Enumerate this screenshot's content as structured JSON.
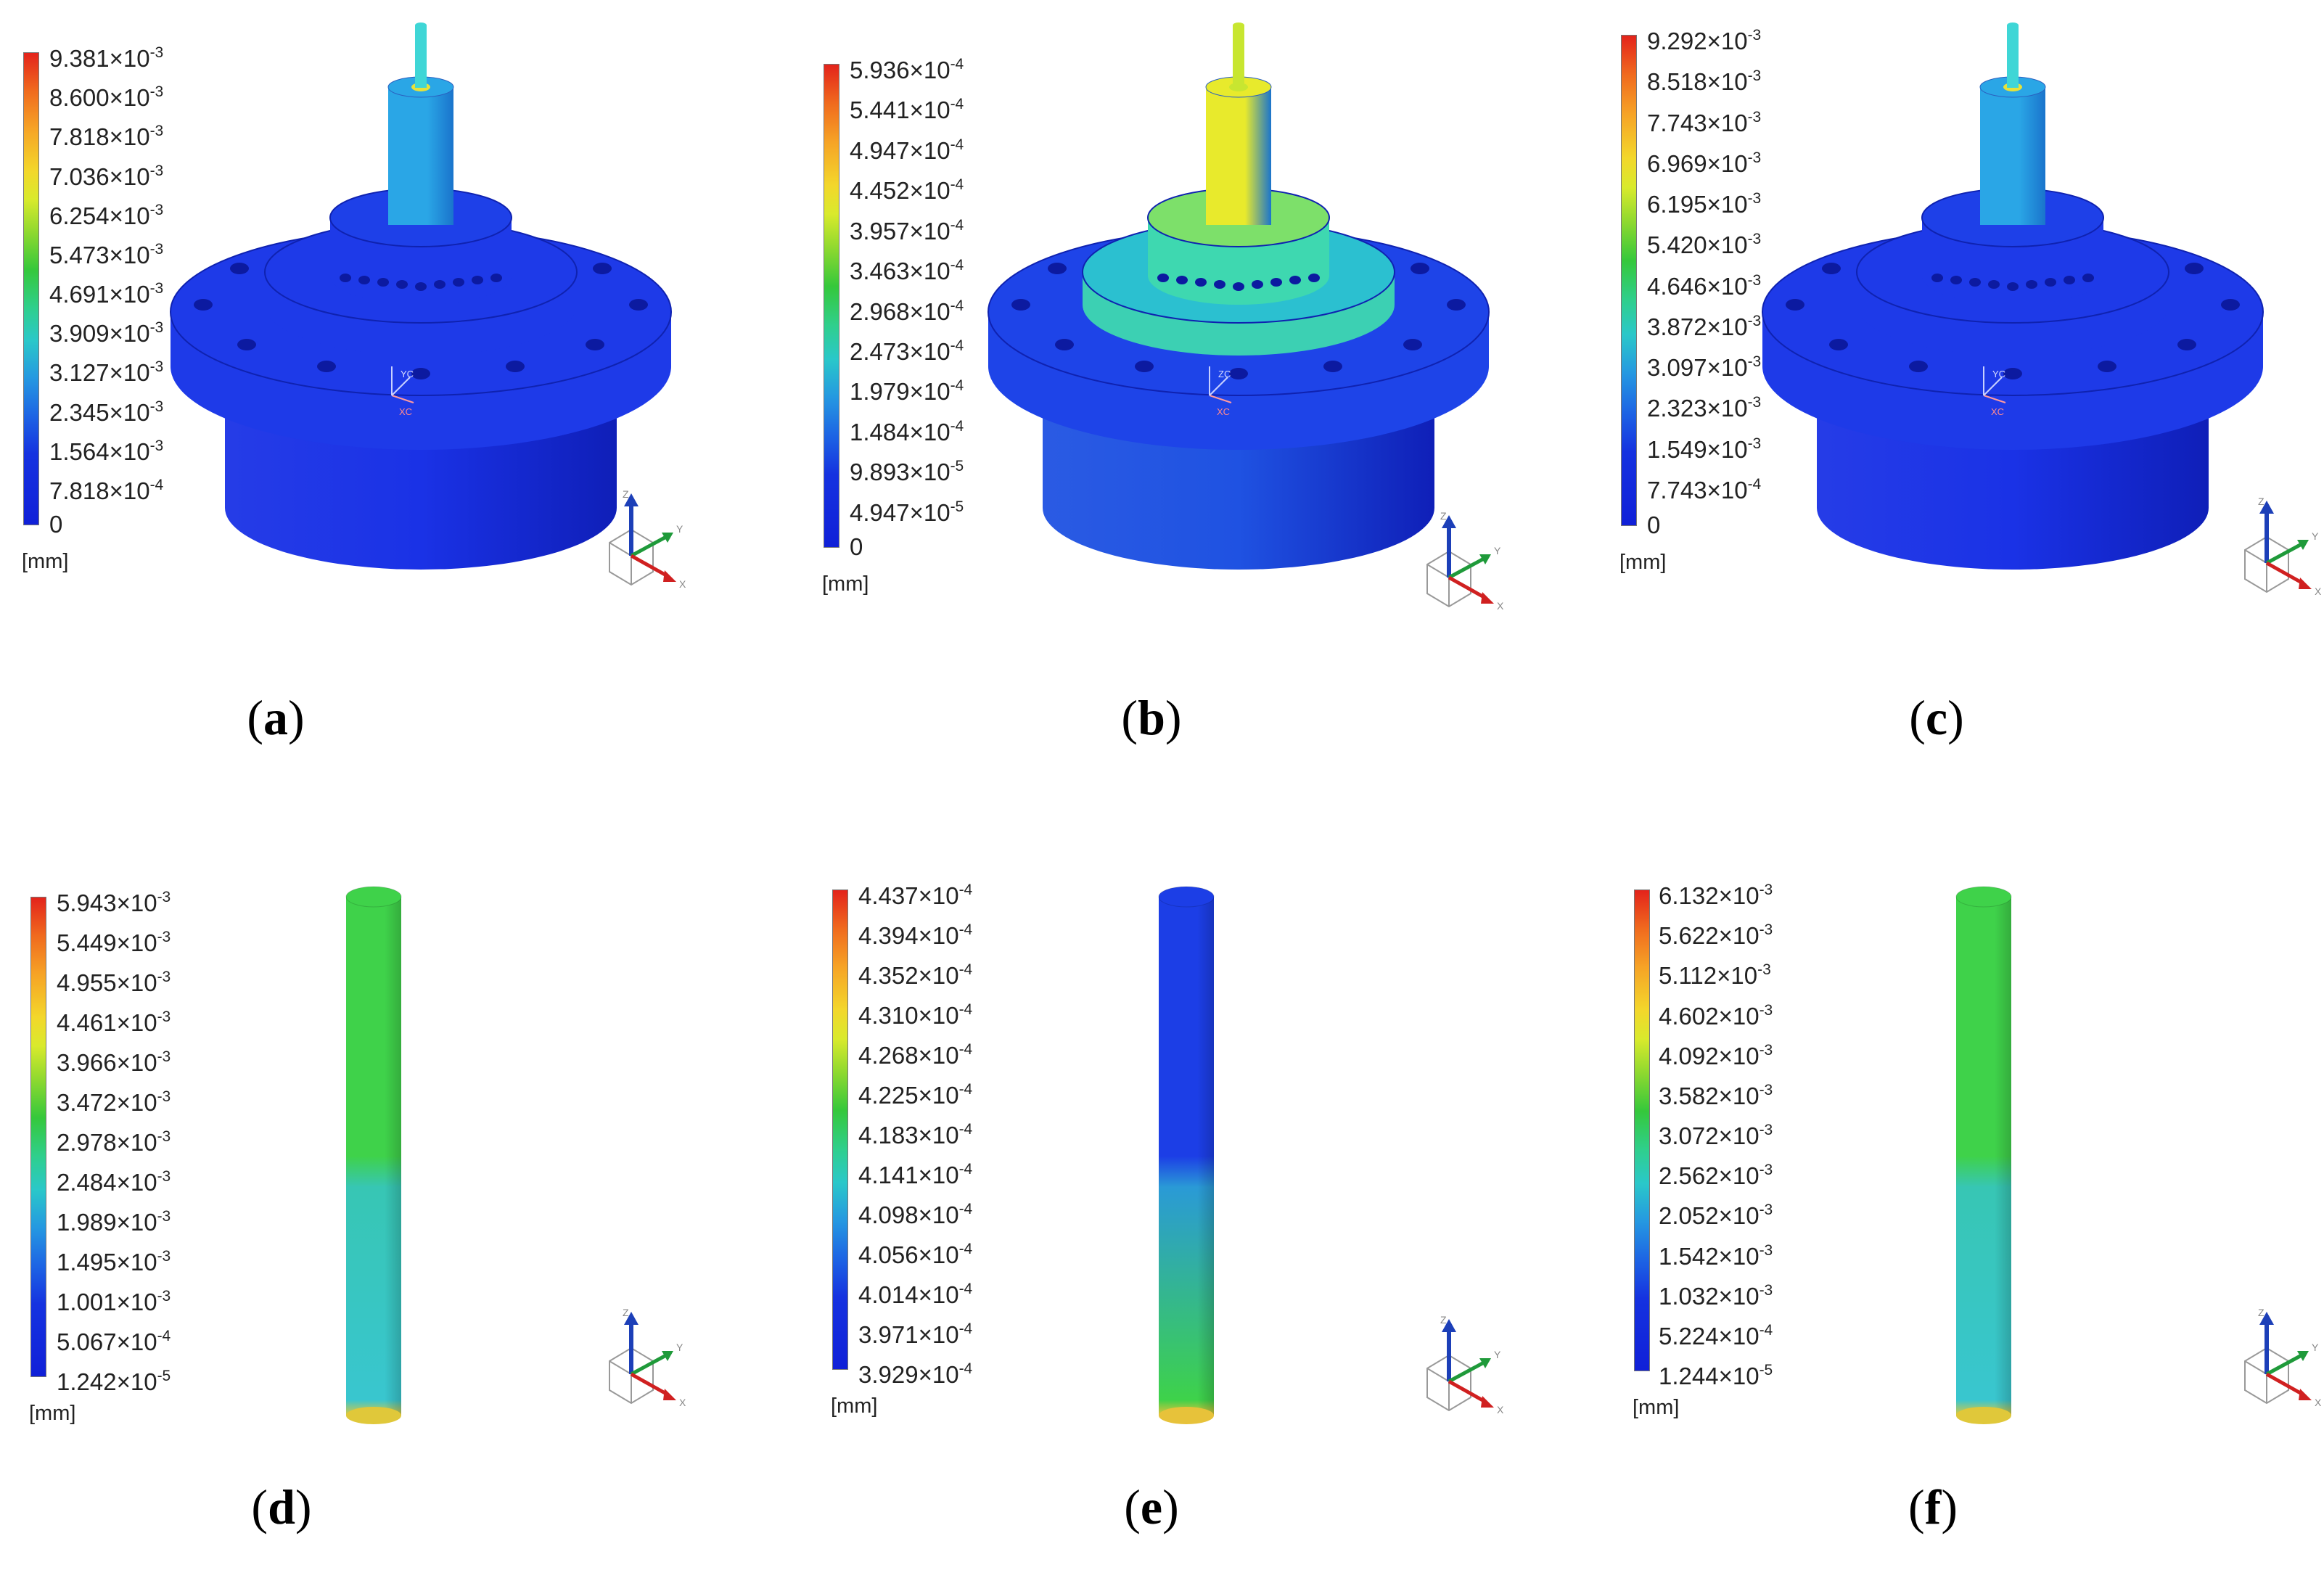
{
  "panels": [
    {
      "caption_label": "a",
      "unit": "[mm]",
      "ticks": [
        "9.381×10⁻³",
        "8.600×10⁻³",
        "7.818×10⁻³",
        "7.036×10⁻³",
        "6.254×10⁻³",
        "5.473×10⁻³",
        "4.691×10⁻³",
        "3.909×10⁻³",
        "3.127×10⁻³",
        "2.345×10⁻³",
        "1.564×10⁻³",
        "7.818×10⁻⁴",
        "0"
      ],
      "model": "housing",
      "colors": {
        "base": "#1a32e6",
        "flange": "#1e3ae8",
        "shaft": "#2aa6e6",
        "pin": "#3fd6d6",
        "tip": "#e6e23a"
      },
      "triad_labels": [
        "YC",
        "XC"
      ]
    },
    {
      "caption_label": "b",
      "unit": "[mm]",
      "ticks": [
        "5.936×10⁻⁴",
        "5.441×10⁻⁴",
        "4.947×10⁻⁴",
        "4.452×10⁻⁴",
        "3.957×10⁻⁴",
        "3.463×10⁻⁴",
        "2.968×10⁻⁴",
        "2.473×10⁻⁴",
        "1.979×10⁻⁴",
        "1.484×10⁻⁴",
        "9.893×10⁻⁵",
        "4.947×10⁻⁵",
        "0"
      ],
      "model": "housing",
      "colors": {
        "base": "#1f52e2",
        "flange": "#1e44e8",
        "shaft": "#e8ea2c",
        "pin": "#c8e630",
        "tip": "#c8e630",
        "ring": "#3ed8b0"
      },
      "triad_labels": [
        "ZC",
        "XC"
      ]
    },
    {
      "caption_label": "c",
      "unit": "[mm]",
      "ticks": [
        "9.292×10⁻³",
        "8.518×10⁻³",
        "7.743×10⁻³",
        "6.969×10⁻³",
        "6.195×10⁻³",
        "5.420×10⁻³",
        "4.646×10⁻³",
        "3.872×10⁻³",
        "3.097×10⁻³",
        "2.323×10⁻³",
        "1.549×10⁻³",
        "7.743×10⁻⁴",
        "0"
      ],
      "model": "housing",
      "colors": {
        "base": "#1a32e6",
        "flange": "#1e3ae8",
        "shaft": "#2aa6e6",
        "pin": "#3fd6d6",
        "tip": "#e6e23a"
      },
      "triad_labels": [
        "YC",
        "XC"
      ]
    },
    {
      "caption_label": "d",
      "unit": "[mm]",
      "ticks": [
        "5.943×10⁻³",
        "5.449×10⁻³",
        "4.955×10⁻³",
        "4.461×10⁻³",
        "3.966×10⁻³",
        "3.472×10⁻³",
        "2.978×10⁻³",
        "2.484×10⁻³",
        "1.989×10⁻³",
        "1.495×10⁻³",
        "1.001×10⁻³",
        "5.067×10⁻⁴",
        "1.242×10⁻⁵"
      ],
      "model": "rod",
      "colors": {
        "top": "#3fd24a",
        "mid": "#37c6b4",
        "bottom": "#39c6cf",
        "tip": "#e0c83a"
      }
    },
    {
      "caption_label": "e",
      "unit": "[mm]",
      "ticks": [
        "4.437×10⁻⁴",
        "4.394×10⁻⁴",
        "4.352×10⁻⁴",
        "4.310×10⁻⁴",
        "4.268×10⁻⁴",
        "4.225×10⁻⁴",
        "4.183×10⁻⁴",
        "4.141×10⁻⁴",
        "4.098×10⁻⁴",
        "4.056×10⁻⁴",
        "4.014×10⁻⁴",
        "3.971×10⁻⁴",
        "3.929×10⁻⁴"
      ],
      "model": "rod",
      "colors": {
        "top": "#1c3ee6",
        "mid": "#2a9ad6",
        "bottom": "#3ed24a",
        "tip": "#e7c23a"
      }
    },
    {
      "caption_label": "f",
      "unit": "[mm]",
      "ticks": [
        "6.132×10⁻³",
        "5.622×10⁻³",
        "5.112×10⁻³",
        "4.602×10⁻³",
        "4.092×10⁻³",
        "3.582×10⁻³",
        "3.072×10⁻³",
        "2.562×10⁻³",
        "2.052×10⁻³",
        "1.542×10⁻³",
        "1.032×10⁻³",
        "5.224×10⁻⁴",
        "1.244×10⁻⁵"
      ],
      "model": "rod",
      "colors": {
        "top": "#3fd24a",
        "mid": "#37c6b4",
        "bottom": "#39c6cf",
        "tip": "#e0c83a"
      }
    }
  ],
  "triad_axes": [
    "Z",
    "Y",
    "X"
  ]
}
